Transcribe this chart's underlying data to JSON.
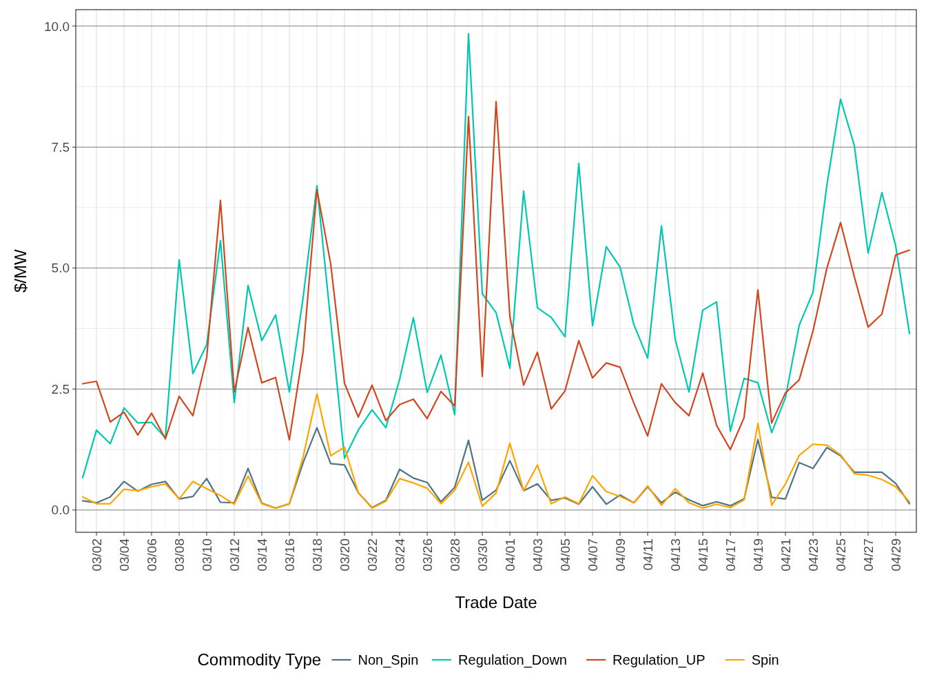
{
  "chart_data": {
    "type": "line",
    "xlabel": "Trade Date",
    "ylabel": "$/MW",
    "legend_title": "Commodity Type",
    "legend": "bottom",
    "grid": true,
    "line_style": "solid",
    "marker": "none",
    "categories": [
      null,
      "03/02",
      null,
      "03/04",
      null,
      "03/06",
      null,
      "03/08",
      null,
      "03/10",
      null,
      "03/12",
      null,
      "03/14",
      null,
      "03/16",
      null,
      "03/18",
      null,
      "03/20",
      null,
      "03/22",
      null,
      "03/24",
      null,
      "03/26",
      null,
      "03/28",
      null,
      "03/30",
      null,
      "04/01",
      null,
      "04/03",
      null,
      "04/05",
      null,
      "04/07",
      null,
      "04/09",
      null,
      "04/11",
      null,
      "04/13",
      null,
      "04/15",
      null,
      "04/17",
      null,
      "04/19",
      null,
      "04/21",
      null,
      "04/23",
      null,
      "04/25",
      null,
      "04/27",
      null,
      "04/29",
      null
    ],
    "ylim": [
      -0.46,
      10.34
    ],
    "yticks": [
      {
        "value": 0,
        "label": "0.0"
      },
      {
        "value": 2.5,
        "label": "2.5"
      },
      {
        "value": 5,
        "label": "5.0"
      },
      {
        "value": 7.5,
        "label": "7.5"
      },
      {
        "value": 10,
        "label": "10.0"
      }
    ],
    "series": [
      {
        "name": "Non_Spin",
        "color": "#4e7386",
        "values": [
          0.19,
          0.15,
          0.27,
          0.59,
          0.39,
          0.53,
          0.59,
          0.23,
          0.28,
          0.65,
          0.16,
          0.15,
          0.86,
          0.14,
          0.04,
          0.13,
          0.98,
          1.7,
          0.96,
          0.93,
          0.36,
          0.05,
          0.2,
          0.84,
          0.66,
          0.57,
          0.17,
          0.47,
          1.44,
          0.2,
          0.41,
          1.02,
          0.4,
          0.54,
          0.2,
          0.25,
          0.12,
          0.48,
          0.12,
          0.31,
          0.15,
          0.48,
          0.15,
          0.37,
          0.21,
          0.09,
          0.17,
          0.09,
          0.23,
          1.46,
          0.26,
          0.23,
          0.98,
          0.86,
          1.29,
          1.12,
          0.78,
          0.78,
          0.78,
          0.55,
          0.13
        ]
      },
      {
        "name": "Regulation_Down",
        "color": "#00c8b0",
        "values": [
          0.67,
          1.65,
          1.37,
          2.11,
          1.8,
          1.81,
          1.49,
          5.17,
          2.82,
          3.42,
          5.57,
          2.22,
          4.64,
          3.5,
          4.03,
          2.44,
          4.4,
          6.7,
          3.9,
          1.07,
          1.65,
          2.07,
          1.7,
          2.7,
          3.97,
          2.43,
          3.2,
          1.97,
          9.84,
          4.47,
          4.08,
          2.93,
          6.59,
          4.18,
          3.98,
          3.58,
          7.16,
          3.81,
          5.44,
          5.02,
          3.83,
          3.14,
          5.87,
          3.53,
          2.44,
          4.13,
          4.3,
          1.63,
          2.72,
          2.63,
          1.6,
          2.32,
          3.82,
          4.5,
          6.7,
          8.49,
          7.53,
          5.31,
          6.56,
          5.46,
          3.65
        ]
      },
      {
        "name": "Regulation_UP",
        "color": "#d2461e",
        "values": [
          2.61,
          2.66,
          1.82,
          2.02,
          1.55,
          2.0,
          1.47,
          2.35,
          1.95,
          3.15,
          6.4,
          2.44,
          3.77,
          2.63,
          2.74,
          1.45,
          3.28,
          6.62,
          5.08,
          2.62,
          1.92,
          2.58,
          1.85,
          2.18,
          2.29,
          1.89,
          2.45,
          2.15,
          8.13,
          2.76,
          8.44,
          4.0,
          2.58,
          3.26,
          2.09,
          2.46,
          3.5,
          2.73,
          3.04,
          2.95,
          2.21,
          1.53,
          2.61,
          2.22,
          1.95,
          2.83,
          1.75,
          1.25,
          1.91,
          4.55,
          1.8,
          2.42,
          2.69,
          3.7,
          4.99,
          5.94,
          4.82,
          3.78,
          4.05,
          5.27,
          5.37
        ]
      },
      {
        "name": "Spin",
        "color": "#ffa500",
        "values": [
          0.27,
          0.13,
          0.13,
          0.43,
          0.4,
          0.48,
          0.54,
          0.23,
          0.59,
          0.44,
          0.3,
          0.12,
          0.7,
          0.13,
          0.04,
          0.13,
          1.1,
          2.4,
          1.12,
          1.3,
          0.36,
          0.04,
          0.18,
          0.65,
          0.56,
          0.45,
          0.13,
          0.41,
          0.99,
          0.08,
          0.35,
          1.38,
          0.4,
          0.93,
          0.13,
          0.27,
          0.13,
          0.71,
          0.38,
          0.28,
          0.15,
          0.5,
          0.1,
          0.44,
          0.15,
          0.04,
          0.12,
          0.05,
          0.21,
          1.79,
          0.1,
          0.54,
          1.13,
          1.36,
          1.34,
          1.14,
          0.75,
          0.72,
          0.63,
          0.48,
          0.17
        ]
      }
    ]
  }
}
